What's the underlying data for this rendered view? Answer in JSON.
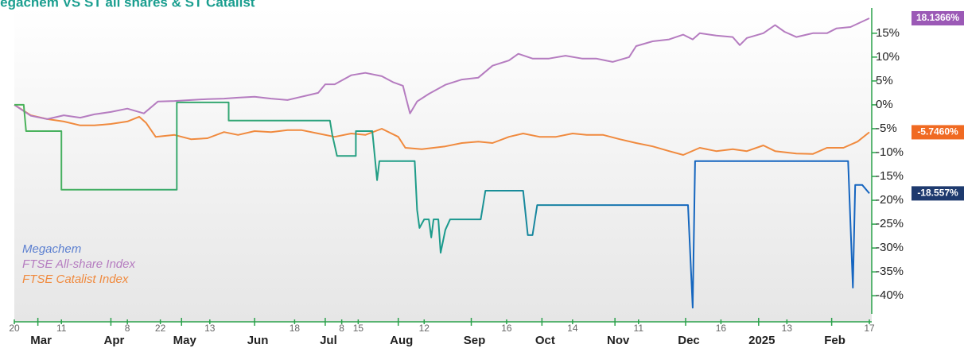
{
  "chart_data": {
    "type": "line",
    "title": "Megachem VS ST all shares & ST Catalist",
    "xlim": [
      0,
      363
    ],
    "ylim": [
      -43.8,
      20.3
    ],
    "yticks": [
      {
        "value": 15,
        "label": "15%"
      },
      {
        "value": 10,
        "label": "10%"
      },
      {
        "value": 5,
        "label": "5%"
      },
      {
        "value": 0,
        "label": "0%"
      },
      {
        "value": -5,
        "label": "-5%"
      },
      {
        "value": -10,
        "label": "-10%"
      },
      {
        "value": -15,
        "label": "-15%"
      },
      {
        "value": -20,
        "label": "-20%"
      },
      {
        "value": -25,
        "label": "-25%"
      },
      {
        "value": -30,
        "label": "-30%"
      },
      {
        "value": -35,
        "label": "-35%"
      },
      {
        "value": -40,
        "label": "-40%"
      }
    ],
    "xticks": [
      {
        "value": 0,
        "label": "20"
      },
      {
        "value": 20,
        "label": "11"
      },
      {
        "value": 48,
        "label": "8"
      },
      {
        "value": 62,
        "label": "22"
      },
      {
        "value": 83,
        "label": "13"
      },
      {
        "value": 119,
        "label": "18"
      },
      {
        "value": 139,
        "label": "8"
      },
      {
        "value": 146,
        "label": "15"
      },
      {
        "value": 174,
        "label": "12"
      },
      {
        "value": 209,
        "label": "16"
      },
      {
        "value": 237,
        "label": "14"
      },
      {
        "value": 265,
        "label": "11"
      },
      {
        "value": 300,
        "label": "16"
      },
      {
        "value": 328,
        "label": "13"
      },
      {
        "value": 363,
        "label": "17"
      }
    ],
    "month_ticks": [
      {
        "value": 10,
        "label": "Mar"
      },
      {
        "value": 41,
        "label": "Apr"
      },
      {
        "value": 71,
        "label": "May"
      },
      {
        "value": 102,
        "label": "Jun"
      },
      {
        "value": 132,
        "label": "Jul"
      },
      {
        "value": 163,
        "label": "Aug"
      },
      {
        "value": 194,
        "label": "Sep"
      },
      {
        "value": 224,
        "label": "Oct"
      },
      {
        "value": 255,
        "label": "Nov"
      },
      {
        "value": 285,
        "label": "Dec"
      },
      {
        "value": 316,
        "label": "2025"
      },
      {
        "value": 347,
        "label": "Feb"
      }
    ],
    "series": [
      {
        "name": "Megachem",
        "color": "#5b7fd0",
        "gradient": [
          "#4cb35a",
          "#1a9a8c",
          "#1565c0"
        ],
        "end_color": "#1e3a6e",
        "end_label": "-18.557%",
        "x": [
          0,
          4,
          5,
          20,
          20,
          69,
          69,
          91,
          91,
          134,
          135,
          137,
          145,
          145,
          152,
          154,
          155,
          170,
          171,
          172,
          174,
          176,
          177,
          178,
          180,
          181,
          183,
          185,
          198,
          200,
          216,
          218,
          220,
          222,
          286,
          288,
          289,
          354,
          356,
          357,
          360,
          363
        ],
        "values": [
          0,
          0,
          -5.5,
          -5.5,
          -17.8,
          -17.8,
          0.5,
          0.5,
          -3.3,
          -3.3,
          -6.3,
          -10.7,
          -10.7,
          -5.5,
          -5.5,
          -15.8,
          -11.8,
          -11.8,
          -22,
          -25.8,
          -24,
          -24,
          -27.8,
          -24,
          -24,
          -31,
          -26.2,
          -24,
          -24,
          -18,
          -18,
          -27.3,
          -27.3,
          -21,
          -21,
          -42.5,
          -11.8,
          -11.8,
          -38.3,
          -16.8,
          -16.8,
          -18.557
        ]
      },
      {
        "name": "FTSE All-share Index",
        "color": "#b57cc0",
        "end_color": "#9b59b6",
        "end_label": "18.1366%",
        "x": [
          0,
          7,
          14,
          21,
          28,
          34,
          41,
          48,
          55,
          61,
          68,
          75,
          82,
          89,
          95,
          102,
          109,
          116,
          122,
          129,
          132,
          136,
          143,
          149,
          156,
          161,
          165,
          166,
          168,
          171,
          176,
          183,
          190,
          197,
          203,
          210,
          214,
          220,
          227,
          234,
          241,
          247,
          254,
          261,
          264,
          271,
          278,
          284,
          288,
          291,
          298,
          305,
          308,
          311,
          318,
          323,
          327,
          332,
          339,
          345,
          349,
          355,
          363
        ],
        "values": [
          0,
          -2.3,
          -3,
          -2.2,
          -2.7,
          -2,
          -1.5,
          -0.8,
          -1.8,
          0.7,
          0.8,
          1,
          1.2,
          1.3,
          1.5,
          1.7,
          1.3,
          1,
          1.7,
          2.5,
          4.3,
          4.3,
          6.2,
          6.7,
          6,
          4.7,
          4,
          2,
          -1.8,
          0.7,
          2.3,
          4.2,
          5.3,
          5.7,
          8.2,
          9.3,
          10.7,
          9.7,
          9.7,
          10.3,
          9.7,
          9.7,
          9,
          10,
          12.3,
          13.3,
          13.7,
          14.7,
          13.7,
          15,
          14.5,
          14.2,
          12.5,
          14,
          15,
          16.7,
          15.3,
          14.2,
          15,
          15,
          16,
          16.3,
          18.1366
        ]
      },
      {
        "name": "FTSE Catalist Index",
        "color": "#f08a3e",
        "end_color": "#f06a22",
        "end_label": "-5.7460%",
        "x": [
          0,
          7,
          14,
          21,
          28,
          34,
          41,
          48,
          53,
          56,
          60,
          68,
          75,
          82,
          89,
          95,
          102,
          109,
          116,
          122,
          129,
          136,
          143,
          149,
          156,
          163,
          166,
          173,
          183,
          190,
          197,
          203,
          210,
          216,
          223,
          230,
          237,
          243,
          250,
          257,
          264,
          271,
          278,
          284,
          291,
          298,
          305,
          311,
          318,
          323,
          332,
          339,
          345,
          352,
          358,
          363
        ],
        "values": [
          0,
          -2.2,
          -3,
          -3.5,
          -4.3,
          -4.3,
          -4,
          -3.5,
          -2.5,
          -3.8,
          -6.7,
          -6.3,
          -7.2,
          -7,
          -5.7,
          -6.3,
          -5.5,
          -5.7,
          -5.3,
          -5.3,
          -6,
          -6.7,
          -6,
          -6.3,
          -5,
          -6.7,
          -9,
          -9.3,
          -8.7,
          -8,
          -7.7,
          -8,
          -6.7,
          -6,
          -6.7,
          -6.7,
          -6,
          -6.3,
          -6.3,
          -7.2,
          -8,
          -8.7,
          -9.7,
          -10.5,
          -9,
          -9.7,
          -9.3,
          -9.7,
          -8.5,
          -9.7,
          -10.2,
          -10.3,
          -9,
          -9,
          -7.7,
          -5.746
        ]
      }
    ]
  }
}
